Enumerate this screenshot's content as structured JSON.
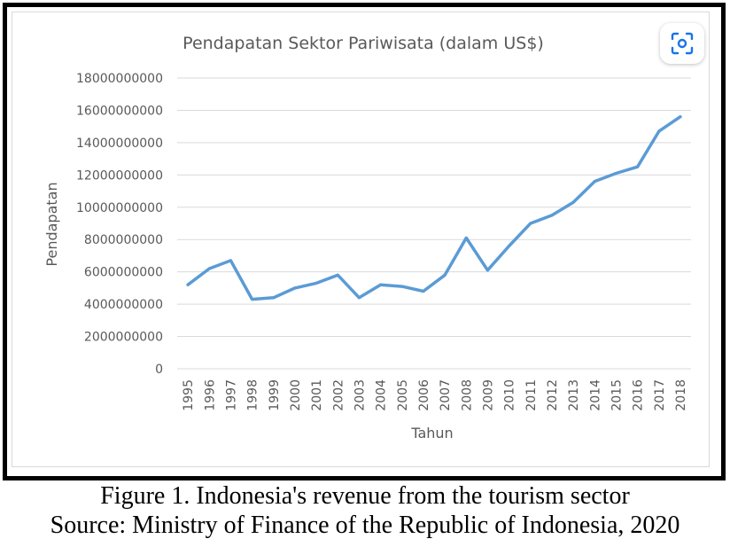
{
  "chart_data": {
    "type": "line",
    "title": "Pendapatan Sektor  Pariwisata (dalam US$)",
    "xlabel": "Tahun",
    "ylabel": "Pendapatan",
    "ylim": [
      0,
      18000000000
    ],
    "yticks": [
      0,
      2000000000,
      4000000000,
      6000000000,
      8000000000,
      10000000000,
      12000000000,
      14000000000,
      16000000000,
      18000000000
    ],
    "ytick_labels": [
      "0",
      "2000000000",
      "4000000000",
      "6000000000",
      "8000000000",
      "10000000000",
      "12000000000",
      "14000000000",
      "16000000000",
      "18000000000"
    ],
    "grid": true,
    "line_color": "#5b9bd5",
    "categories": [
      "1995",
      "1996",
      "1997",
      "1998",
      "1999",
      "2000",
      "2001",
      "2002",
      "2003",
      "2004",
      "2005",
      "2006",
      "2007",
      "2008",
      "2009",
      "2010",
      "2011",
      "2012",
      "2013",
      "2014",
      "2015",
      "2016",
      "2017",
      "2018"
    ],
    "series": [
      {
        "values": [
          5200000000,
          6200000000,
          6700000000,
          4300000000,
          4400000000,
          5000000000,
          5300000000,
          5800000000,
          4400000000,
          5200000000,
          5100000000,
          4800000000,
          5800000000,
          8100000000,
          6100000000,
          7600000000,
          9000000000,
          9500000000,
          10300000000,
          11600000000,
          12100000000,
          12500000000,
          14700000000,
          15600000000
        ]
      }
    ]
  },
  "caption": {
    "line1": "Figure 1. Indonesia's revenue from the tourism sector",
    "line2": "Source: Ministry of Finance of the Republic of Indonesia, 2020"
  },
  "lens_button": {
    "icon": "lens-icon"
  }
}
